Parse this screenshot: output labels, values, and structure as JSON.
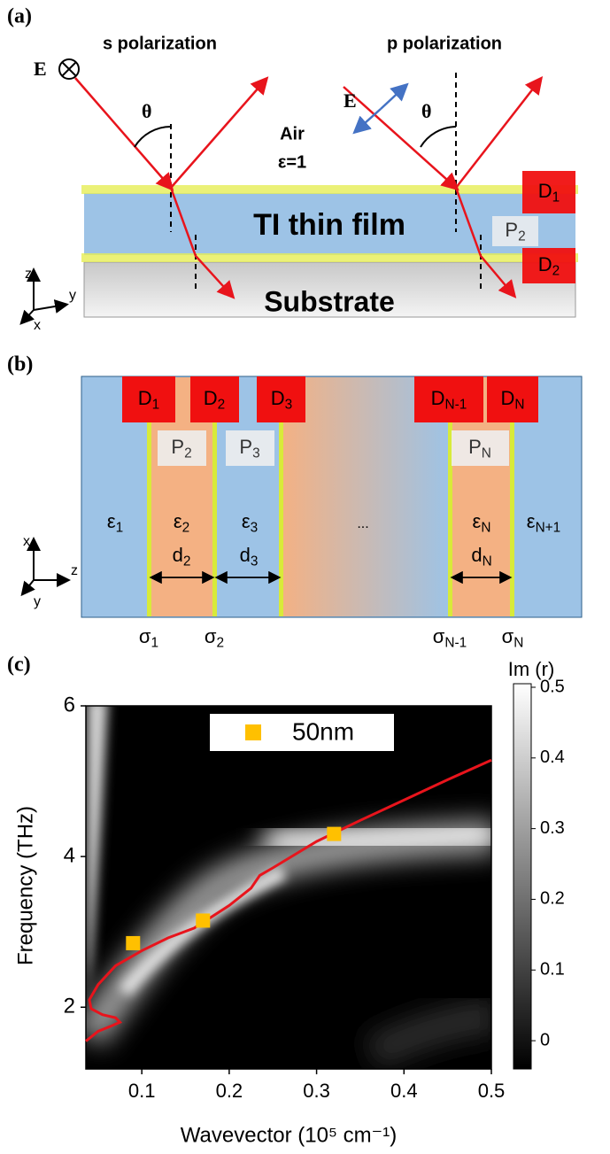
{
  "panel_a": {
    "label": "(a)",
    "s_title": "s polarization",
    "p_title": "p polarization",
    "field_s": "E",
    "field_p": "E",
    "angle_s": "θ",
    "angle_p": "θ",
    "medium": "Air",
    "medium_eps": "ε=1",
    "film": "TI thin film",
    "substrate": "Substrate",
    "boxes": [
      {
        "base": "D",
        "sub": "1"
      },
      {
        "base": "D",
        "sub": "2"
      },
      {
        "base": "P",
        "sub": "2"
      }
    ],
    "axes": [
      "z",
      "y",
      "x"
    ]
  },
  "panel_b": {
    "label": "(b)",
    "d_boxes": [
      {
        "base": "D",
        "sub": "1"
      },
      {
        "base": "D",
        "sub": "2"
      },
      {
        "base": "D",
        "sub": "3"
      },
      {
        "base": "D",
        "sub": "N-1"
      },
      {
        "base": "D",
        "sub": "N"
      }
    ],
    "p_boxes": [
      {
        "base": "P",
        "sub": "2"
      },
      {
        "base": "P",
        "sub": "3"
      },
      {
        "base": "P",
        "sub": "N"
      }
    ],
    "eps": [
      {
        "base": "ε",
        "sub": "1"
      },
      {
        "base": "ε",
        "sub": "2"
      },
      {
        "base": "ε",
        "sub": "3"
      },
      {
        "base": "ε",
        "sub": "N"
      },
      {
        "base": "ε",
        "sub": "N+1"
      }
    ],
    "ellipsis": "...",
    "thickness": [
      {
        "base": "d",
        "sub": "2"
      },
      {
        "base": "d",
        "sub": "3"
      },
      {
        "base": "d",
        "sub": "N"
      }
    ],
    "sigma": [
      {
        "base": "σ",
        "sub": "1"
      },
      {
        "base": "σ",
        "sub": "2"
      },
      {
        "base": "σ",
        "sub": "N-1"
      },
      {
        "base": "σ",
        "sub": "N"
      }
    ],
    "axes": [
      "x",
      "z",
      "y"
    ]
  },
  "chart_data": {
    "type": "line",
    "label": "(c)",
    "x_label": "Wavevector (10⁵ cm⁻¹)",
    "y_label": "Frequency (THz)",
    "xlim": [
      0.036,
      0.5
    ],
    "xticks": [
      0.1,
      0.2,
      0.3,
      0.4,
      0.5
    ],
    "ylim": [
      1.18,
      6
    ],
    "yticks": [
      2,
      4,
      6
    ],
    "series": [
      {
        "type": "line",
        "color": "#e8141c",
        "x": [
          0.036,
          0.05,
          0.065,
          0.075,
          0.07,
          0.055,
          0.042,
          0.04,
          0.05,
          0.07,
          0.1,
          0.13,
          0.16,
          0.2,
          0.225,
          0.235,
          0.25,
          0.3,
          0.35,
          0.4,
          0.45,
          0.5
        ],
        "values": [
          1.55,
          1.68,
          1.75,
          1.8,
          1.86,
          1.9,
          1.98,
          2.1,
          2.3,
          2.55,
          2.75,
          2.92,
          3.05,
          3.35,
          3.58,
          3.75,
          3.85,
          4.2,
          4.48,
          4.75,
          5.02,
          5.28
        ]
      },
      {
        "type": "scatter",
        "name": "50nm",
        "color": "#ffc000",
        "x": [
          0.09,
          0.17,
          0.32
        ],
        "values": [
          2.85,
          3.15,
          4.3
        ]
      }
    ],
    "colorbar": {
      "title": "Im (r)",
      "zlim": [
        -0.04,
        0.505
      ],
      "zticks": [
        0,
        0.1,
        0.2,
        0.3,
        0.4,
        0.5
      ],
      "colors": [
        "#000000",
        "#ffffff"
      ]
    }
  }
}
